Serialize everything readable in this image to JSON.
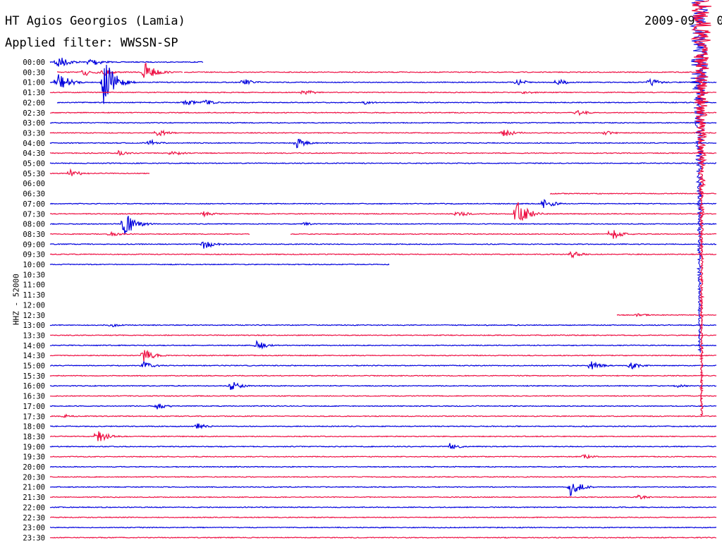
{
  "header": {
    "title": "HT Agios Georgios (Lamia)",
    "filter": "Applied filter: WWSSN-SP",
    "date": "2009-09-  0"
  },
  "chart_data": {
    "type": "line",
    "title": "HT Agios Georgios (Lamia)",
    "subtitle": "Applied filter: WWSSN-SP",
    "ylabel": "HHZ - 52000",
    "tick_labels": [
      "00:00",
      "00:30",
      "01:00",
      "01:30",
      "02:00",
      "02:30",
      "03:00",
      "03:30",
      "04:00",
      "04:30",
      "05:00",
      "05:30",
      "06:00",
      "06:30",
      "07:00",
      "07:30",
      "08:00",
      "08:30",
      "09:00",
      "09:30",
      "10:00",
      "10:30",
      "11:00",
      "11:30",
      "12:00",
      "12:30",
      "13:00",
      "13:30",
      "14:00",
      "14:30",
      "15:00",
      "15:30",
      "16:00",
      "16:30",
      "17:00",
      "17:30",
      "18:00",
      "18:30",
      "19:00",
      "19:30",
      "20:00",
      "20:30",
      "21:00",
      "21:30",
      "22:00",
      "22:30",
      "23:00",
      "23:30"
    ],
    "row_minutes": 30,
    "colors": {
      "blue": "#0000dd",
      "red": "#ee1144"
    },
    "traces": [
      {
        "time": "00:00",
        "color": "blue",
        "gaps": [
          [
            0.23,
            1.0
          ]
        ],
        "events": [
          [
            0.01,
            12
          ],
          [
            0.06,
            8
          ],
          [
            0.52,
            6
          ]
        ]
      },
      {
        "time": "00:30",
        "color": "red",
        "gaps": [
          [
            0.0,
            0.01
          ],
          [
            0.2,
            0.2
          ],
          [
            0.98,
            1.0
          ]
        ],
        "events": [
          [
            0.05,
            7
          ],
          [
            0.08,
            6
          ],
          [
            0.14,
            18
          ]
        ]
      },
      {
        "time": "01:00",
        "color": "blue",
        "gaps": [],
        "events": [
          [
            0.01,
            18
          ],
          [
            0.08,
            40
          ],
          [
            0.29,
            6
          ],
          [
            0.7,
            5
          ],
          [
            0.76,
            6
          ],
          [
            0.9,
            6
          ]
        ]
      },
      {
        "time": "01:30",
        "color": "red",
        "gaps": [],
        "events": [
          [
            0.38,
            5
          ],
          [
            0.71,
            4
          ]
        ]
      },
      {
        "time": "02:00",
        "color": "blue",
        "gaps": [
          [
            0.0,
            0.01
          ]
        ],
        "events": [
          [
            0.2,
            6
          ],
          [
            0.23,
            5
          ],
          [
            0.47,
            3
          ]
        ]
      },
      {
        "time": "02:30",
        "color": "red",
        "gaps": [],
        "events": [
          [
            0.79,
            5
          ]
        ]
      },
      {
        "time": "03:00",
        "color": "blue",
        "gaps": [],
        "events": []
      },
      {
        "time": "03:30",
        "color": "red",
        "gaps": [],
        "events": [
          [
            0.16,
            6
          ],
          [
            0.68,
            8
          ],
          [
            0.83,
            4
          ]
        ]
      },
      {
        "time": "04:00",
        "color": "blue",
        "gaps": [],
        "events": [
          [
            0.15,
            5
          ],
          [
            0.37,
            7
          ]
        ]
      },
      {
        "time": "04:30",
        "color": "red",
        "gaps": [],
        "events": [
          [
            0.1,
            5
          ],
          [
            0.18,
            5
          ]
        ]
      },
      {
        "time": "05:00",
        "color": "blue",
        "gaps": [],
        "events": []
      },
      {
        "time": "05:30",
        "color": "red",
        "gaps": [
          [
            0.15,
            1.0
          ]
        ],
        "events": [
          [
            0.03,
            6
          ]
        ]
      },
      {
        "time": "06:00",
        "color": "blue",
        "gaps": [
          [
            0.0,
            1.0
          ]
        ],
        "events": []
      },
      {
        "time": "06:30",
        "color": "red",
        "gaps": [
          [
            0.0,
            0.75
          ]
        ],
        "events": []
      },
      {
        "time": "07:00",
        "color": "blue",
        "gaps": [],
        "events": [
          [
            0.74,
            8
          ]
        ]
      },
      {
        "time": "07:30",
        "color": "red",
        "gaps": [],
        "events": [
          [
            0.23,
            4
          ],
          [
            0.61,
            6
          ],
          [
            0.7,
            22
          ]
        ]
      },
      {
        "time": "08:00",
        "color": "blue",
        "gaps": [],
        "events": [
          [
            0.11,
            22
          ],
          [
            0.38,
            3
          ]
        ]
      },
      {
        "time": "08:30",
        "color": "red",
        "gaps": [
          [
            0.3,
            0.36
          ]
        ],
        "events": [
          [
            0.09,
            4
          ],
          [
            0.84,
            10
          ]
        ]
      },
      {
        "time": "09:00",
        "color": "blue",
        "gaps": [],
        "events": [
          [
            0.23,
            8
          ]
        ]
      },
      {
        "time": "09:30",
        "color": "red",
        "gaps": [],
        "events": [
          [
            0.78,
            6
          ]
        ]
      },
      {
        "time": "10:00",
        "color": "blue",
        "gaps": [
          [
            0.51,
            1.0
          ]
        ],
        "events": []
      },
      {
        "time": "10:30",
        "color": "red",
        "gaps": [
          [
            0.0,
            1.0
          ]
        ],
        "events": []
      },
      {
        "time": "11:00",
        "color": "blue",
        "gaps": [
          [
            0.0,
            1.0
          ]
        ],
        "events": []
      },
      {
        "time": "11:30",
        "color": "red",
        "gaps": [
          [
            0.0,
            1.0
          ]
        ],
        "events": []
      },
      {
        "time": "12:00",
        "color": "blue",
        "gaps": [
          [
            0.0,
            1.0
          ]
        ],
        "events": []
      },
      {
        "time": "12:30",
        "color": "red",
        "gaps": [
          [
            0.0,
            0.85
          ]
        ],
        "events": [
          [
            0.88,
            3
          ]
        ]
      },
      {
        "time": "13:00",
        "color": "blue",
        "gaps": [],
        "events": [
          [
            0.09,
            3
          ]
        ]
      },
      {
        "time": "13:30",
        "color": "red",
        "gaps": [],
        "events": []
      },
      {
        "time": "14:00",
        "color": "blue",
        "gaps": [],
        "events": [
          [
            0.31,
            7
          ]
        ]
      },
      {
        "time": "14:30",
        "color": "red",
        "gaps": [],
        "events": [
          [
            0.14,
            10
          ]
        ]
      },
      {
        "time": "15:00",
        "color": "blue",
        "gaps": [],
        "events": [
          [
            0.14,
            6
          ],
          [
            0.81,
            8
          ],
          [
            0.87,
            6
          ]
        ]
      },
      {
        "time": "15:30",
        "color": "red",
        "gaps": [],
        "events": []
      },
      {
        "time": "16:00",
        "color": "blue",
        "gaps": [],
        "events": [
          [
            0.27,
            8
          ],
          [
            0.94,
            3
          ]
        ]
      },
      {
        "time": "16:30",
        "color": "red",
        "gaps": [],
        "events": []
      },
      {
        "time": "17:00",
        "color": "blue",
        "gaps": [],
        "events": [
          [
            0.16,
            5
          ]
        ]
      },
      {
        "time": "17:30",
        "color": "red",
        "gaps": [],
        "events": [
          [
            0.02,
            3
          ]
        ]
      },
      {
        "time": "18:00",
        "color": "blue",
        "gaps": [],
        "events": [
          [
            0.22,
            5
          ]
        ]
      },
      {
        "time": "18:30",
        "color": "red",
        "gaps": [],
        "events": [
          [
            0.07,
            10
          ]
        ]
      },
      {
        "time": "19:00",
        "color": "blue",
        "gaps": [],
        "events": [
          [
            0.6,
            5
          ]
        ]
      },
      {
        "time": "19:30",
        "color": "red",
        "gaps": [],
        "events": [
          [
            0.8,
            4
          ]
        ]
      },
      {
        "time": "20:00",
        "color": "blue",
        "gaps": [],
        "events": []
      },
      {
        "time": "20:30",
        "color": "red",
        "gaps": [],
        "events": []
      },
      {
        "time": "21:00",
        "color": "blue",
        "gaps": [],
        "events": [
          [
            0.78,
            14
          ]
        ]
      },
      {
        "time": "21:30",
        "color": "red",
        "gaps": [],
        "events": [
          [
            0.88,
            4
          ]
        ]
      },
      {
        "time": "22:00",
        "color": "blue",
        "gaps": [],
        "events": []
      },
      {
        "time": "22:30",
        "color": "red",
        "gaps": [],
        "events": []
      },
      {
        "time": "23:00",
        "color": "blue",
        "gaps": [],
        "events": []
      },
      {
        "time": "23:30",
        "color": "red",
        "gaps": [],
        "events": []
      }
    ]
  }
}
